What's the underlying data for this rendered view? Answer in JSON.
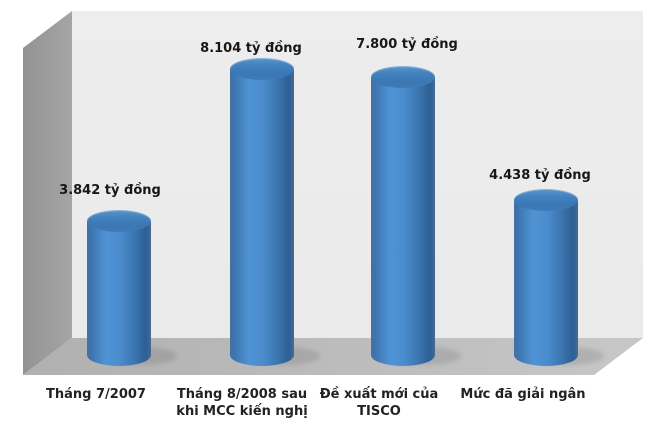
{
  "chart_data": {
    "type": "bar",
    "subtype": "3d-cylinder",
    "categories": [
      "Tháng 7/2007",
      "Tháng 8/2008 sau khi MCC kiến nghị",
      "Đề xuất mới của TISCO",
      "Mức đã giải ngân"
    ],
    "values": [
      3.842,
      8.104,
      7.8,
      4.438
    ],
    "unit": "tỷ đồng",
    "data_labels": [
      "3.842 tỷ đồng",
      "8.104 tỷ đồng",
      "7.800 tỷ đồng",
      "4.438 tỷ đồng"
    ],
    "title": "",
    "xlabel": "",
    "ylabel": "",
    "ylim": [
      0,
      9
    ],
    "grid": false,
    "legend": "none",
    "bar_color": "#4a8fd0"
  },
  "bars": [
    {
      "value_label": "3.842 tỷ đồng",
      "category_display": "Tháng 7/2007"
    },
    {
      "value_label": "8.104 tỷ đồng",
      "category_display": "Tháng 8/2008 sau\nkhi MCC kiến nghị"
    },
    {
      "value_label": "7.800 tỷ đồng",
      "category_display": "Đề xuất mới của\nTISCO"
    },
    {
      "value_label": "4.438 tỷ đồng",
      "category_display": "Mức đã giải ngân"
    }
  ],
  "colors": {
    "bar_body": "#4a8fd0",
    "bar_top_cap": "#3d7ab6",
    "back_wall": "#ebebeb",
    "side_wall": "#9d9d9d",
    "floor": "#bcbcbc",
    "label_text": "#1c1c1c",
    "background": "#ffffff"
  }
}
